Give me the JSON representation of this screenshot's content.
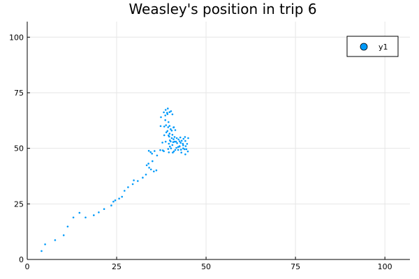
{
  "chart_data": {
    "type": "scatter",
    "title": "Weasley's position in trip 6",
    "xlabel": "",
    "ylabel": "",
    "xlim": [
      0,
      107
    ],
    "ylim": [
      0,
      107
    ],
    "xticks": [
      0,
      25,
      50,
      75,
      100
    ],
    "yticks": [
      0,
      25,
      50,
      75,
      100
    ],
    "grid": true,
    "legend": "top-right",
    "series": [
      {
        "name": "y1",
        "color": "#009AFA",
        "points": [
          [
            4.0,
            3.8
          ],
          [
            5.0,
            6.8
          ],
          [
            7.8,
            8.7
          ],
          [
            10.2,
            10.9
          ],
          [
            11.3,
            14.8
          ],
          [
            12.9,
            18.9
          ],
          [
            14.6,
            21.0
          ],
          [
            16.3,
            18.9
          ],
          [
            18.6,
            19.9
          ],
          [
            20.0,
            21.2
          ],
          [
            21.5,
            22.7
          ],
          [
            23.5,
            24.3
          ],
          [
            24.1,
            26.0
          ],
          [
            24.6,
            26.6
          ],
          [
            25.7,
            27.4
          ],
          [
            26.5,
            28.2
          ],
          [
            27.2,
            30.9
          ],
          [
            28.2,
            32.5
          ],
          [
            29.5,
            33.9
          ],
          [
            29.8,
            35.6
          ],
          [
            30.9,
            35.3
          ],
          [
            32.3,
            36.8
          ],
          [
            33.2,
            38.2
          ],
          [
            33.4,
            42.4
          ],
          [
            34.1,
            41.3
          ],
          [
            35.0,
            44.2
          ],
          [
            33.9,
            43.1
          ],
          [
            34.6,
            40.5
          ],
          [
            35.4,
            39.6
          ],
          [
            36.1,
            40.1
          ],
          [
            34.5,
            48.3
          ],
          [
            34.0,
            48.9
          ],
          [
            35.6,
            48.8
          ],
          [
            34.9,
            47.6
          ],
          [
            36.3,
            46.8
          ],
          [
            37.2,
            49.2
          ],
          [
            38.2,
            48.7
          ],
          [
            39.6,
            48.2
          ],
          [
            40.2,
            50.0
          ],
          [
            41.0,
            48.6
          ],
          [
            42.2,
            49.3
          ],
          [
            43.1,
            48.1
          ],
          [
            44.2,
            47.3
          ],
          [
            44.9,
            48.6
          ],
          [
            43.6,
            50.0
          ],
          [
            42.6,
            51.0
          ],
          [
            41.7,
            50.2
          ],
          [
            40.6,
            51.5
          ],
          [
            39.6,
            52.1
          ],
          [
            40.1,
            53.1
          ],
          [
            40.9,
            54.1
          ],
          [
            41.6,
            53.0
          ],
          [
            42.3,
            54.0
          ],
          [
            43.2,
            53.4
          ],
          [
            44.2,
            53.3
          ],
          [
            45.0,
            54.6
          ],
          [
            44.7,
            52.0
          ],
          [
            43.6,
            51.4
          ],
          [
            42.9,
            52.5
          ],
          [
            41.9,
            52.3
          ],
          [
            41.2,
            55.1
          ],
          [
            40.6,
            56.1
          ],
          [
            39.7,
            55.3
          ],
          [
            39.2,
            57.8
          ],
          [
            40.1,
            58.6
          ],
          [
            40.9,
            59.4
          ],
          [
            41.4,
            58.2
          ],
          [
            39.4,
            59.5
          ],
          [
            38.3,
            59.8
          ],
          [
            37.3,
            60.0
          ],
          [
            38.6,
            62.7
          ],
          [
            37.4,
            64.0
          ],
          [
            38.6,
            64.8
          ],
          [
            39.2,
            65.4
          ],
          [
            39.8,
            66.3
          ],
          [
            40.6,
            65.3
          ],
          [
            38.2,
            66.2
          ],
          [
            38.7,
            67.3
          ],
          [
            39.3,
            67.9
          ],
          [
            40.2,
            66.7
          ],
          [
            39.1,
            66.0
          ],
          [
            39.8,
            60.1
          ],
          [
            38.8,
            60.4
          ],
          [
            39.5,
            61.8
          ],
          [
            41.0,
            59.5
          ],
          [
            38.9,
            57.2
          ],
          [
            39.5,
            55.8
          ],
          [
            40.4,
            54.6
          ],
          [
            41.2,
            53.0
          ],
          [
            42.6,
            53.2
          ],
          [
            43.5,
            52.1
          ],
          [
            44.3,
            51.0
          ],
          [
            44.0,
            49.6
          ],
          [
            42.2,
            50.6
          ],
          [
            41.4,
            49.3
          ],
          [
            40.7,
            48.1
          ],
          [
            39.4,
            49.7
          ],
          [
            39.9,
            50.8
          ],
          [
            43.0,
            49.4
          ],
          [
            44.5,
            49.6
          ],
          [
            44.1,
            55.1
          ],
          [
            43.7,
            54.3
          ],
          [
            42.8,
            54.9
          ],
          [
            41.8,
            54.6
          ],
          [
            40.8,
            52.8
          ],
          [
            39.9,
            53.6
          ],
          [
            38.7,
            53.0
          ],
          [
            37.8,
            52.6
          ],
          [
            37.9,
            49.1
          ],
          [
            39.8,
            56.6
          ],
          [
            40.4,
            58.0
          ],
          [
            38.3,
            55.9
          ],
          [
            42.6,
            50.8
          ]
        ]
      }
    ]
  }
}
